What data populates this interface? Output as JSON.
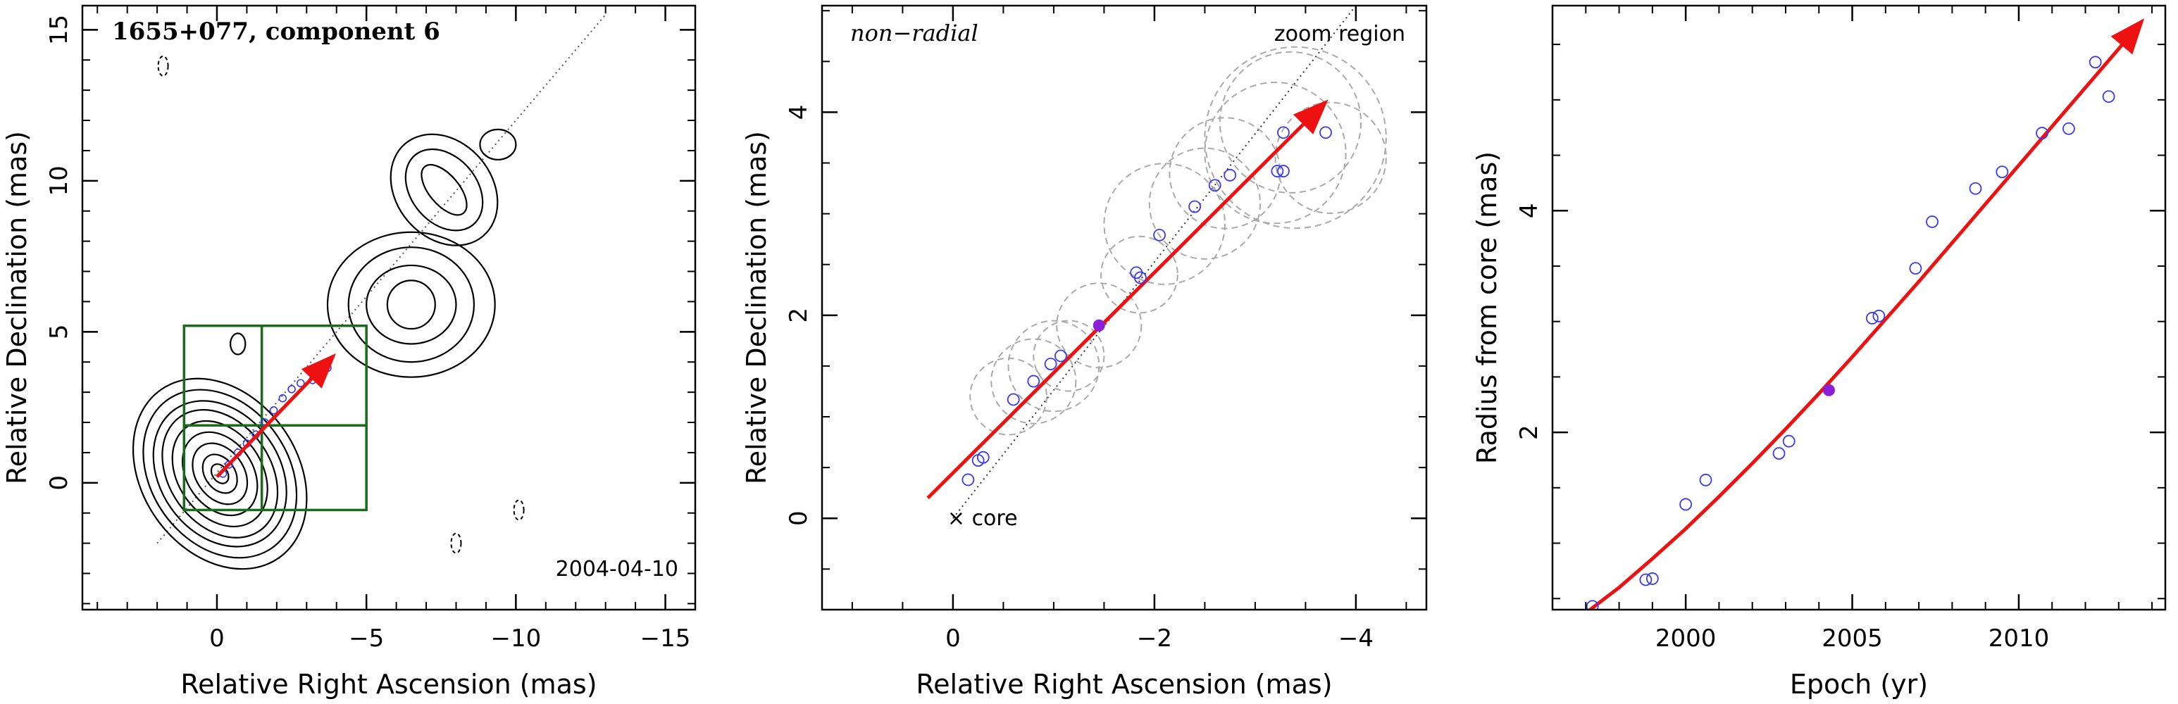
{
  "chart_data": [
    {
      "type": "scatter",
      "panel": "contour-map",
      "title": "1655+077, component 6",
      "date_label": "2004-04-10",
      "xlabel": "Relative Right Ascension (mas)",
      "ylabel": "Relative Declination (mas)",
      "xlim": [
        4.5,
        -16
      ],
      "ylim": [
        -4.2,
        15.8
      ],
      "xticks": [
        0,
        -5,
        -10,
        -15
      ],
      "xtick_labels": [
        "0",
        "−5",
        "−10",
        "−15"
      ],
      "yticks": [
        0,
        5,
        10,
        15
      ],
      "ytick_labels": [
        "0",
        "5",
        "10",
        "15"
      ],
      "colors": {
        "contour": "#000000",
        "grid_box": "#1a6b1a",
        "arrow": "#ee1111",
        "points": "#3a3aee",
        "axis_line": "#555555"
      },
      "grid_box": {
        "x_edges": [
          1.1,
          -1.5,
          -5.0
        ],
        "y_edges": [
          -0.9,
          1.9,
          5.2
        ]
      },
      "arrow": {
        "from": [
          0.0,
          0.2
        ],
        "to": [
          -3.9,
          4.2
        ]
      },
      "axis_line": {
        "from": [
          2.0,
          -2.0
        ],
        "to": [
          -13.0,
          15.5
        ]
      },
      "points": [
        [
          -0.2,
          0.3
        ],
        [
          -0.4,
          0.6
        ],
        [
          -0.7,
          1.0
        ],
        [
          -1.0,
          1.3
        ],
        [
          -1.3,
          1.6
        ],
        [
          -1.6,
          2.0
        ],
        [
          -1.9,
          2.4
        ],
        [
          -2.2,
          2.8
        ],
        [
          -2.5,
          3.1
        ],
        [
          -2.8,
          3.3
        ],
        [
          -3.2,
          3.4
        ],
        [
          -3.7,
          3.8
        ]
      ],
      "contour_groups": [
        {
          "cx": -0.1,
          "cy": 0.3,
          "rx": [
            0.25,
            0.5,
            0.8,
            1.1,
            1.4,
            1.7,
            2.0,
            2.3,
            2.6
          ],
          "ry": [
            0.35,
            0.7,
            1.1,
            1.5,
            1.9,
            2.3,
            2.6,
            3.0,
            3.4
          ],
          "rot": -35
        },
        {
          "cx": -6.5,
          "cy": 5.9,
          "rx": [
            0.8,
            1.5,
            2.1,
            2.8
          ],
          "ry": [
            0.8,
            1.3,
            1.9,
            2.4
          ],
          "rot": 0
        },
        {
          "cx": -7.6,
          "cy": 9.7,
          "rx": [
            0.5,
            1.1,
            1.6
          ],
          "ry": [
            1.0,
            1.5,
            2.0
          ],
          "rot": -40
        },
        {
          "cx": -9.4,
          "cy": 11.2,
          "rx": [
            0.6
          ],
          "ry": [
            0.5
          ],
          "rot": 0
        },
        {
          "cx": -0.7,
          "cy": 4.6,
          "rx": [
            0.25
          ],
          "ry": [
            0.35
          ],
          "rot": 0
        }
      ],
      "dashed_blobs": [
        [
          1.8,
          13.8
        ],
        [
          -8.0,
          -2.0
        ],
        [
          -10.1,
          -0.9
        ]
      ]
    },
    {
      "type": "scatter",
      "panel": "zoom-region",
      "title": "non−radial",
      "corner_label": "zoom region",
      "core_label": "× core",
      "xlabel": "Relative Right Ascension (mas)",
      "ylabel": "Relative Declination (mas)",
      "xlim": [
        1.3,
        -4.7
      ],
      "ylim": [
        -0.9,
        5.05
      ],
      "xticks": [
        0,
        -2,
        -4
      ],
      "xtick_labels": [
        "0",
        "−2",
        "−4"
      ],
      "yticks": [
        0,
        2,
        4
      ],
      "yticks_labels": [
        "0",
        "2",
        "4"
      ],
      "colors": {
        "points": "#3a3aee",
        "highlight": "#8a1fd6",
        "arrow": "#ee1111",
        "circles": "#aaaaaa"
      },
      "arrow": {
        "from": [
          0.25,
          0.2
        ],
        "to": [
          -3.7,
          4.1
        ]
      },
      "axis_line": {
        "from": [
          0.0,
          0.0
        ],
        "to": [
          -4.0,
          5.05
        ]
      },
      "points": [
        [
          -0.15,
          0.38
        ],
        [
          -0.25,
          0.57
        ],
        [
          -0.3,
          0.6
        ],
        [
          -0.6,
          1.17
        ],
        [
          -0.8,
          1.35
        ],
        [
          -0.97,
          1.52
        ],
        [
          -1.07,
          1.6
        ],
        [
          -1.82,
          2.42
        ],
        [
          -1.86,
          2.37
        ],
        [
          -2.05,
          2.79
        ],
        [
          -2.4,
          3.07
        ],
        [
          -2.6,
          3.28
        ],
        [
          -2.75,
          3.38
        ],
        [
          -3.22,
          3.42
        ],
        [
          -3.28,
          3.42
        ],
        [
          -3.28,
          3.8
        ],
        [
          -3.7,
          3.8
        ]
      ],
      "highlight": [
        -1.45,
        1.9
      ],
      "circles": [
        [
          -0.55,
          1.2,
          0.38
        ],
        [
          -0.8,
          1.35,
          0.42
        ],
        [
          -1.0,
          1.5,
          0.45
        ],
        [
          -1.15,
          1.6,
          0.35
        ],
        [
          -1.45,
          1.9,
          0.42
        ],
        [
          -1.85,
          2.4,
          0.38
        ],
        [
          -2.1,
          2.9,
          0.6
        ],
        [
          -2.5,
          3.1,
          0.55
        ],
        [
          -2.7,
          3.4,
          0.55
        ],
        [
          -3.2,
          3.6,
          0.7
        ],
        [
          -3.35,
          3.9,
          0.7
        ],
        [
          -3.4,
          3.75,
          0.9
        ],
        [
          -3.75,
          3.55,
          0.55
        ]
      ]
    },
    {
      "type": "scatter",
      "panel": "radius-vs-epoch",
      "xlabel": "Epoch (yr)",
      "ylabel": "Radius from core (mas)",
      "xlim": [
        1996.0,
        2014.4
      ],
      "ylim": [
        0.4,
        5.85
      ],
      "xticks": [
        2000,
        2005,
        2010
      ],
      "xtick_labels": [
        "2000",
        "2005",
        "2010"
      ],
      "yticks": [
        2,
        4
      ],
      "ytick_labels": [
        "2",
        "4"
      ],
      "colors": {
        "points": "#3a3aee",
        "highlight": "#8a1fd6",
        "fit": "#ee1111"
      },
      "points": [
        [
          1997.2,
          0.43
        ],
        [
          1998.8,
          0.67
        ],
        [
          1999.0,
          0.68
        ],
        [
          2000.0,
          1.35
        ],
        [
          2000.6,
          1.57
        ],
        [
          2002.8,
          1.81
        ],
        [
          2003.1,
          1.92
        ],
        [
          2005.6,
          3.03
        ],
        [
          2005.8,
          3.05
        ],
        [
          2006.9,
          3.48
        ],
        [
          2007.4,
          3.9
        ],
        [
          2008.7,
          4.2
        ],
        [
          2009.5,
          4.35
        ],
        [
          2010.7,
          4.7
        ],
        [
          2011.5,
          4.74
        ],
        [
          2012.3,
          5.34
        ],
        [
          2012.7,
          5.03
        ]
      ],
      "highlight": [
        2004.3,
        2.38
      ],
      "fit_curve": [
        [
          1997.0,
          0.37
        ],
        [
          1998.0,
          0.6
        ],
        [
          1999.0,
          0.86
        ],
        [
          2000.0,
          1.13
        ],
        [
          2001.0,
          1.42
        ],
        [
          2002.0,
          1.72
        ],
        [
          2003.0,
          2.03
        ],
        [
          2004.0,
          2.35
        ],
        [
          2005.0,
          2.68
        ],
        [
          2006.0,
          3.02
        ],
        [
          2007.0,
          3.36
        ],
        [
          2008.0,
          3.71
        ],
        [
          2009.0,
          4.06
        ],
        [
          2010.0,
          4.41
        ],
        [
          2011.0,
          4.76
        ],
        [
          2012.0,
          5.11
        ],
        [
          2013.0,
          5.46
        ],
        [
          2013.7,
          5.71
        ]
      ]
    }
  ]
}
